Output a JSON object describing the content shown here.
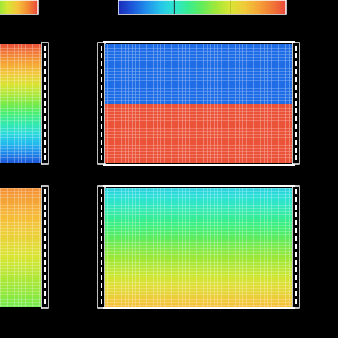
{
  "colormap": [
    "#1a2db8",
    "#1e66e6",
    "#22b8f0",
    "#2ee6d2",
    "#3cef7a",
    "#8ee83a",
    "#d8e634",
    "#f6c23a",
    "#f38a34",
    "#e9473a"
  ],
  "frame_color": "#ffffff",
  "panels": [
    {
      "name": "panel-top-left",
      "fill_mode": "gradient",
      "from_level": 0.98,
      "to_level": 0.08
    },
    {
      "name": "panel-top-right",
      "fill_mode": "split",
      "upper_level": 0.12,
      "lower_level": 0.98,
      "split_fraction": 0.37
    },
    {
      "name": "panel-bottom-left",
      "fill_mode": "gradient",
      "from_level": 0.88,
      "to_level": 0.52
    },
    {
      "name": "panel-bottom-right",
      "fill_mode": "gradient",
      "from_level": 0.28,
      "to_level": 0.78
    }
  ],
  "colorbars": [
    {
      "name": "colorbar-left",
      "from_level": 0.55,
      "to_level": 1.0
    },
    {
      "name": "colorbar-right",
      "from_level": 0.0,
      "to_level": 1.0,
      "divisions": 3
    }
  ]
}
